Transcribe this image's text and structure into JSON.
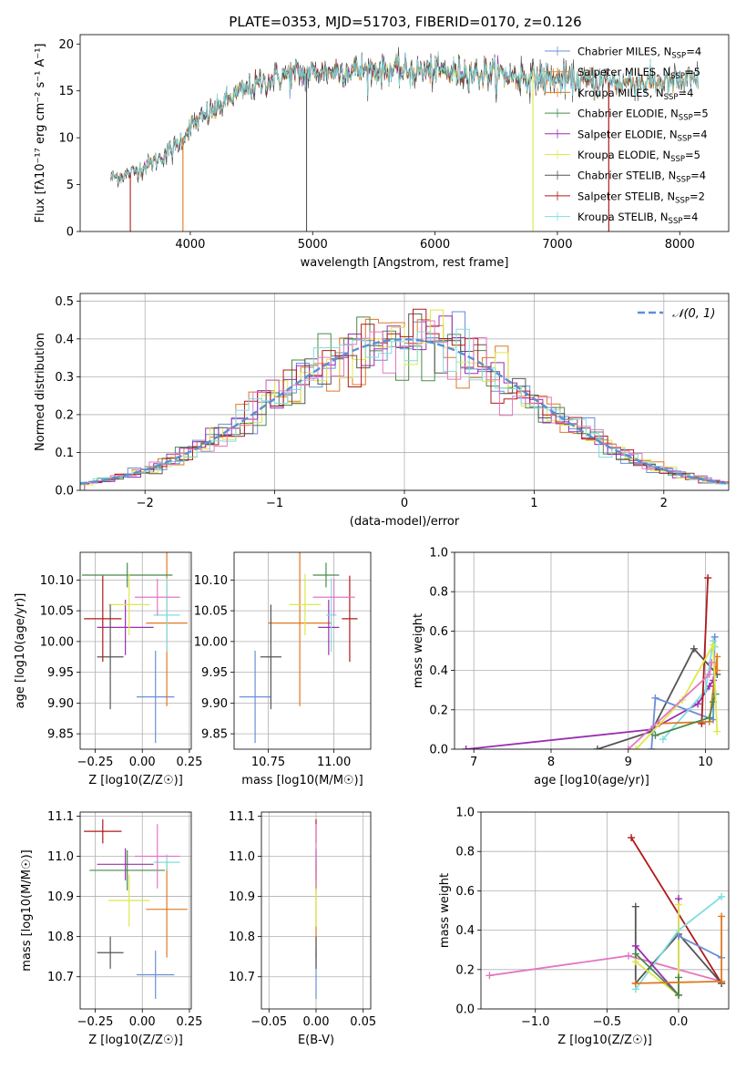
{
  "title": "PLATE=0353, MJD=51703, FIBERID=0170, z=0.126",
  "colors": {
    "Chabrier MILES": "#6a8fd8",
    "Salpeter MILES": "#e6872b",
    "Kroupa MILES": "#e07820",
    "Chabrier ELODIE": "#4a8a4a",
    "Salpeter ELODIE": "#9a2fb0",
    "Kroupa ELODIE": "#dde84a",
    "Chabrier STELIB": "#555555",
    "Salpeter STELIB": "#b01a1a",
    "Kroupa STELIB": "#7fdde0",
    "extra pink": "#e377c2",
    "normal": "#5b8fd6"
  },
  "chart_data": [
    {
      "id": "spectrum",
      "type": "line",
      "title": "PLATE=0353, MJD=51703, FIBERID=0170, z=0.126",
      "xlabel": "wavelength [Angstrom, rest frame]",
      "ylabel": "Flux [fλ10⁻¹⁷ erg cm⁻² s⁻¹ A⁻¹]",
      "xlim": [
        3100,
        8400
      ],
      "ylim": [
        0,
        21
      ],
      "xticks": [
        4000,
        5000,
        6000,
        7000,
        8000
      ],
      "yticks": [
        0,
        5,
        10,
        15,
        20
      ],
      "continuum": {
        "x": [
          3350,
          3500,
          3700,
          3900,
          4000,
          4200,
          4400,
          4600,
          4800,
          5000,
          5300,
          5600,
          5900,
          6200,
          6500,
          6800,
          7100,
          7400,
          7700,
          8000,
          8150
        ],
        "y": [
          5.7,
          6.1,
          7.4,
          9.3,
          11.2,
          13.0,
          14.8,
          16.0,
          16.7,
          16.9,
          17.2,
          17.2,
          17.1,
          17.0,
          16.9,
          16.4,
          16.1,
          15.9,
          15.9,
          15.9,
          16.2
        ]
      },
      "dropouts": [
        3510,
        3940,
        4950,
        6800,
        7420
      ],
      "legend": {
        "position": "upper right",
        "entries": [
          {
            "name": "Chabrier MILES",
            "nssp": "4"
          },
          {
            "name": "Salpeter MILES",
            "nssp": "5"
          },
          {
            "name": "Kroupa MILES",
            "nssp": "4"
          },
          {
            "name": "Chabrier ELODIE",
            "nssp": "5"
          },
          {
            "name": "Salpeter ELODIE",
            "nssp": "4"
          },
          {
            "name": "Kroupa ELODIE",
            "nssp": "5"
          },
          {
            "name": "Chabrier STELIB",
            "nssp": "4"
          },
          {
            "name": "Salpeter STELIB",
            "nssp": "2"
          },
          {
            "name": "Kroupa STELIB",
            "nssp": "4"
          }
        ]
      }
    },
    {
      "id": "residual-histogram",
      "type": "histogram",
      "xlabel": "(data-model)/error",
      "ylabel": "Normed distribution",
      "xlim": [
        -2.5,
        2.5
      ],
      "ylim": [
        0,
        0.52
      ],
      "xticks": [
        -2,
        -1,
        0,
        1,
        2
      ],
      "yticks": [
        0.0,
        0.1,
        0.2,
        0.3,
        0.4,
        0.5
      ],
      "grid": true,
      "bin_width": 0.1,
      "legend": {
        "position": "upper right",
        "entries": [
          "𝒩(0, 1)"
        ]
      },
      "reference_curve": "normal pdf, mean 0, sigma 1",
      "note_series": "nine step histograms, one per model, following the normal shape"
    },
    {
      "id": "age-vs-Z",
      "type": "scatter",
      "xlabel": "Z [log10(Z/Z☉)]",
      "ylabel": "age  [log10(age/yr)]",
      "xlim": [
        -0.33,
        0.26
      ],
      "ylim": [
        9.825,
        10.145
      ],
      "xticks": [
        -0.25,
        0.0,
        0.25
      ],
      "xticklabels": [
        "−0.25",
        "0.00",
        "0.25"
      ],
      "yticks": [
        9.85,
        9.9,
        9.95,
        10.0,
        10.05,
        10.1
      ],
      "yticklabels": [
        "9.85",
        "9.90",
        "9.95",
        "10.00",
        "10.05",
        "10.10"
      ],
      "grid": true,
      "points": [
        {
          "model": "Chabrier MILES",
          "x": 0.07,
          "y": 9.91,
          "ex": 0.1,
          "ey": 0.075
        },
        {
          "model": "Kroupa MILES",
          "x": 0.13,
          "y": 10.03,
          "ex": 0.11,
          "ey": 0.135
        },
        {
          "model": "Chabrier ELODIE",
          "x": -0.08,
          "y": 10.108,
          "ex": 0.24,
          "ey": 0.02
        },
        {
          "model": "Salpeter ELODIE",
          "x": -0.09,
          "y": 10.023,
          "ex": 0.15,
          "ey": 0.045
        },
        {
          "model": "Kroupa ELODIE",
          "x": -0.07,
          "y": 10.06,
          "ex": 0.11,
          "ey": 0.05
        },
        {
          "model": "Chabrier STELIB",
          "x": -0.17,
          "y": 9.975,
          "ex": 0.07,
          "ey": 0.085
        },
        {
          "model": "Salpeter STELIB",
          "x": -0.21,
          "y": 10.037,
          "ex": 0.1,
          "ey": 0.07
        },
        {
          "model": "Kroupa STELIB",
          "x": 0.13,
          "y": 10.043,
          "ex": 0.07,
          "ey": 0.06
        },
        {
          "model": "extra pink",
          "x": 0.08,
          "y": 10.072,
          "ex": 0.12,
          "ey": 0.03
        }
      ]
    },
    {
      "id": "age-vs-mass",
      "type": "scatter",
      "xlabel": "mass [log10(M/M☉)]",
      "ylabel": "",
      "xlim": [
        10.62,
        11.14
      ],
      "ylim": [
        9.825,
        10.145
      ],
      "xticks": [
        10.75,
        11.0
      ],
      "xticklabels": [
        "10.75",
        "11.00"
      ],
      "yticks": [
        9.85,
        9.9,
        9.95,
        10.0,
        10.05,
        10.1
      ],
      "yticklabels": [
        "9.85",
        "9.90",
        "9.95",
        "10.00",
        "10.05",
        "10.10"
      ],
      "grid": true,
      "points": [
        {
          "model": "Chabrier MILES",
          "x": 10.7,
          "y": 9.91,
          "ex": 0.06,
          "ey": 0.075
        },
        {
          "model": "Kroupa MILES",
          "x": 10.87,
          "y": 10.03,
          "ex": 0.12,
          "ey": 0.135
        },
        {
          "model": "Chabrier ELODIE",
          "x": 10.97,
          "y": 10.108,
          "ex": 0.05,
          "ey": 0.02
        },
        {
          "model": "Salpeter ELODIE",
          "x": 10.98,
          "y": 10.023,
          "ex": 0.04,
          "ey": 0.045
        },
        {
          "model": "Kroupa ELODIE",
          "x": 10.89,
          "y": 10.06,
          "ex": 0.06,
          "ey": 0.05
        },
        {
          "model": "Chabrier STELIB",
          "x": 10.76,
          "y": 9.975,
          "ex": 0.04,
          "ey": 0.085
        },
        {
          "model": "Salpeter STELIB",
          "x": 11.06,
          "y": 10.037,
          "ex": 0.03,
          "ey": 0.07
        },
        {
          "model": "Kroupa STELIB",
          "x": 10.99,
          "y": 10.043,
          "ex": 0.02,
          "ey": 0.06
        },
        {
          "model": "extra pink",
          "x": 11.0,
          "y": 10.072,
          "ex": 0.08,
          "ey": 0.03
        }
      ]
    },
    {
      "id": "weight-vs-age",
      "type": "line",
      "xlabel": "age  [log10(age/yr)]",
      "ylabel": "mass weight",
      "xlim": [
        6.75,
        10.3
      ],
      "ylim": [
        0,
        1.0
      ],
      "xticks": [
        7,
        8,
        9,
        10
      ],
      "yticks": [
        0.0,
        0.2,
        0.4,
        0.6,
        0.8,
        1.0
      ],
      "grid": true,
      "series": [
        {
          "model": "Salpeter ELODIE",
          "x": [
            6.9,
            9.3,
            9.9,
            10.05,
            10.1
          ],
          "y": [
            0.0,
            0.1,
            0.23,
            0.32,
            0.35
          ]
        },
        {
          "model": "Chabrier STELIB",
          "x": [
            8.6,
            9.3,
            9.85,
            10.15
          ],
          "y": [
            0.0,
            0.09,
            0.51,
            0.38
          ]
        },
        {
          "model": "Chabrier MILES",
          "x": [
            9.3,
            9.35,
            10.1,
            10.12
          ],
          "y": [
            0.0,
            0.26,
            0.15,
            0.57
          ]
        },
        {
          "model": "Kroupa STELIB",
          "x": [
            9.45,
            10.0,
            10.1,
            10.12
          ],
          "y": [
            0.05,
            0.3,
            0.55,
            0.52
          ]
        },
        {
          "model": "Salpeter STELIB",
          "x": [
            9.95,
            10.03
          ],
          "y": [
            0.13,
            0.87
          ]
        },
        {
          "model": "Kroupa MILES",
          "x": [
            9.4,
            10.05,
            10.15,
            10.15
          ],
          "y": [
            0.13,
            0.14,
            0.47,
            0.4
          ]
        },
        {
          "model": "Chabrier ELODIE",
          "x": [
            9.35,
            10.05,
            10.1,
            10.13
          ],
          "y": [
            0.07,
            0.16,
            0.24,
            0.28
          ]
        },
        {
          "model": "Kroupa ELODIE",
          "x": [
            9.1,
            9.7,
            10.1,
            10.15
          ],
          "y": [
            0.0,
            0.25,
            0.53,
            0.09
          ]
        },
        {
          "model": "extra pink",
          "x": [
            9.0,
            10.05,
            10.08
          ],
          "y": [
            0.0,
            0.38,
            0.44
          ]
        }
      ]
    },
    {
      "id": "mass-vs-Z",
      "type": "scatter",
      "xlabel": "Z [log10(Z/Z☉)]",
      "ylabel": "mass [log10(M/M☉)]",
      "xlim": [
        -0.33,
        0.26
      ],
      "ylim": [
        10.62,
        11.11
      ],
      "xticks": [
        -0.25,
        0.0,
        0.25
      ],
      "xticklabels": [
        "−0.25",
        "0.00",
        "0.25"
      ],
      "yticks": [
        10.7,
        10.8,
        10.9,
        11.0,
        11.1
      ],
      "yticklabels": [
        "10.7",
        "10.8",
        "10.9",
        "11.0",
        "11.1"
      ],
      "grid": true,
      "points": [
        {
          "model": "Chabrier MILES",
          "x": 0.07,
          "y": 10.705,
          "ex": 0.1,
          "ey": 0.06
        },
        {
          "model": "Kroupa MILES",
          "x": 0.13,
          "y": 10.868,
          "ex": 0.11,
          "ey": 0.12
        },
        {
          "model": "Chabrier ELODIE",
          "x": -0.08,
          "y": 10.965,
          "ex": 0.2,
          "ey": 0.05
        },
        {
          "model": "Salpeter ELODIE",
          "x": -0.09,
          "y": 10.98,
          "ex": 0.15,
          "ey": 0.04
        },
        {
          "model": "Kroupa ELODIE",
          "x": -0.07,
          "y": 10.89,
          "ex": 0.11,
          "ey": 0.065
        },
        {
          "model": "Chabrier STELIB",
          "x": -0.17,
          "y": 10.76,
          "ex": 0.07,
          "ey": 0.04
        },
        {
          "model": "Salpeter STELIB",
          "x": -0.21,
          "y": 11.062,
          "ex": 0.1,
          "ey": 0.03
        },
        {
          "model": "Kroupa STELIB",
          "x": 0.13,
          "y": 10.985,
          "ex": 0.07,
          "ey": 0.02
        },
        {
          "model": "extra pink",
          "x": 0.08,
          "y": 11.0,
          "ex": 0.12,
          "ey": 0.08
        }
      ]
    },
    {
      "id": "mass-vs-EBV",
      "type": "scatter",
      "xlabel": "E(B-V)",
      "ylabel": "",
      "xlim": [
        -0.058,
        0.058
      ],
      "ylim": [
        10.62,
        11.11
      ],
      "xticks": [
        -0.05,
        0.0,
        0.05
      ],
      "xticklabels": [
        "−0.05",
        "0.00",
        "0.05"
      ],
      "yticks": [
        10.7,
        10.8,
        10.9,
        11.0,
        11.1
      ],
      "yticklabels": [
        "10.7",
        "10.8",
        "10.9",
        "11.0",
        "11.1"
      ],
      "grid": true,
      "points": [
        {
          "model": "Chabrier MILES",
          "x": 0.0,
          "y": 10.705,
          "ex": 0,
          "ey": 0.06
        },
        {
          "model": "Kroupa MILES",
          "x": 0.0,
          "y": 10.868,
          "ex": 0,
          "ey": 0.12
        },
        {
          "model": "Chabrier ELODIE",
          "x": 0.0,
          "y": 10.965,
          "ex": 0,
          "ey": 0.05
        },
        {
          "model": "Salpeter ELODIE",
          "x": 0.0,
          "y": 10.98,
          "ex": 0,
          "ey": 0.04
        },
        {
          "model": "Kroupa ELODIE",
          "x": 0.0,
          "y": 10.89,
          "ex": 0,
          "ey": 0.065
        },
        {
          "model": "Chabrier STELIB",
          "x": 0.0,
          "y": 10.76,
          "ex": 0,
          "ey": 0.04
        },
        {
          "model": "Salpeter STELIB",
          "x": 0.0,
          "y": 11.062,
          "ex": 0,
          "ey": 0.03
        },
        {
          "model": "Kroupa STELIB",
          "x": 0.0,
          "y": 10.985,
          "ex": 0,
          "ey": 0.02
        },
        {
          "model": "extra pink",
          "x": 0.0,
          "y": 11.0,
          "ex": 0,
          "ey": 0.08
        }
      ]
    },
    {
      "id": "weight-vs-Z",
      "type": "line",
      "xlabel": "Z [log10(Z/Z☉)]",
      "ylabel": "mass weight",
      "xlim": [
        -1.38,
        0.35
      ],
      "ylim": [
        0,
        1.0
      ],
      "xticks": [
        -1.0,
        -0.5,
        0.0
      ],
      "xticklabels": [
        "−1.0",
        "−0.5",
        "0.0"
      ],
      "yticks": [
        0.0,
        0.2,
        0.4,
        0.6,
        0.8,
        1.0
      ],
      "grid": true,
      "series": [
        {
          "model": "extra pink",
          "x": [
            -1.32,
            -0.35,
            0.3
          ],
          "y": [
            0.17,
            0.27,
            0.14
          ]
        },
        {
          "model": "Salpeter STELIB",
          "x": [
            -0.33,
            0.3
          ],
          "y": [
            0.87,
            0.13
          ]
        },
        {
          "model": "Chabrier STELIB",
          "x": [
            -0.3,
            -0.3,
            0.0,
            0.3
          ],
          "y": [
            0.52,
            0.13,
            0.38,
            0.13
          ]
        },
        {
          "model": "Kroupa STELIB",
          "x": [
            -0.3,
            0.0,
            0.3
          ],
          "y": [
            0.1,
            0.4,
            0.57
          ]
        },
        {
          "model": "Salpeter ELODIE",
          "x": [
            -0.3,
            0.0,
            0.0
          ],
          "y": [
            0.32,
            0.07,
            0.56
          ]
        },
        {
          "model": "Kroupa ELODIE",
          "x": [
            -0.3,
            0.0,
            0.0
          ],
          "y": [
            0.24,
            0.07,
            0.53
          ]
        },
        {
          "model": "Chabrier ELODIE",
          "x": [
            -0.3,
            0.0,
            0.0
          ],
          "y": [
            0.28,
            0.07,
            0.16
          ]
        },
        {
          "model": "Chabrier MILES",
          "x": [
            0.0,
            0.3
          ],
          "y": [
            0.37,
            0.26
          ]
        },
        {
          "model": "Kroupa MILES",
          "x": [
            -0.3,
            0.3,
            0.3
          ],
          "y": [
            0.13,
            0.14,
            0.47
          ]
        }
      ]
    }
  ]
}
